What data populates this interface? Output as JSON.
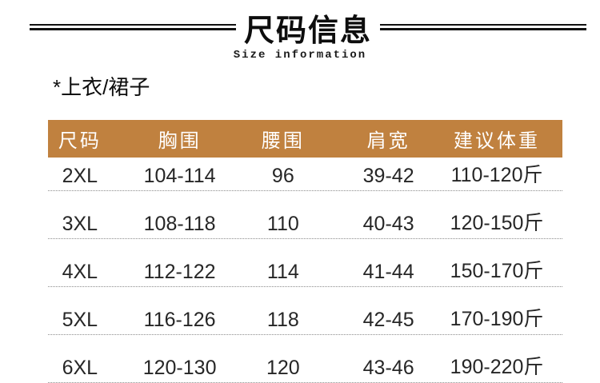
{
  "header": {
    "title": "尺码信息",
    "subtitle": "Size information"
  },
  "section_label": "*上衣/裙子",
  "size_table": {
    "columns": [
      "尺码",
      "胸围",
      "腰围",
      "肩宽",
      "建议体重"
    ],
    "rows": [
      [
        "2XL",
        "104-114",
        "96",
        "39-42",
        "110-120斤"
      ],
      [
        "3XL",
        "108-118",
        "110",
        "40-43",
        "120-150斤"
      ],
      [
        "4XL",
        "112-122",
        "114",
        "41-44",
        "150-170斤"
      ],
      [
        "5XL",
        "116-126",
        "118",
        "42-45",
        "170-190斤"
      ],
      [
        "6XL",
        "120-130",
        "120",
        "43-46",
        "190-220斤"
      ]
    ]
  },
  "colors": {
    "table_header_bg": "#c0813f",
    "table_header_text": "#ffffff",
    "rule_line": "#111111",
    "dotted_separator": "#8c8c8c",
    "body_text": "#262626"
  }
}
